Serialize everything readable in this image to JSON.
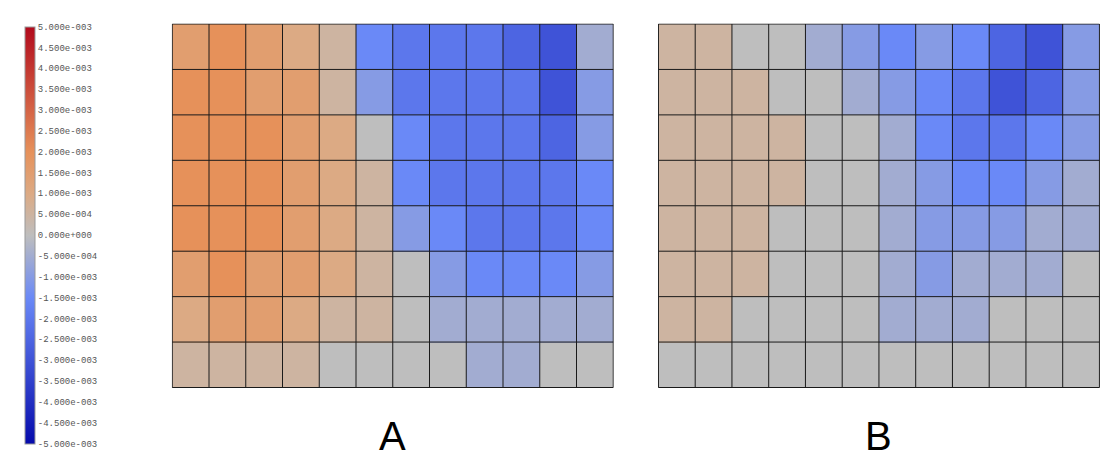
{
  "chart_data": {
    "type": "heatmap",
    "tick_labels": false,
    "colorbar_range": [
      -0.005,
      0.005
    ],
    "colorbar_ticks": [
      {
        "value": 0.005,
        "label": "5.000e-003"
      },
      {
        "value": 0.0045,
        "label": "4.500e-003"
      },
      {
        "value": 0.004,
        "label": "4.000e-003"
      },
      {
        "value": 0.0035,
        "label": "3.500e-003"
      },
      {
        "value": 0.003,
        "label": "3.000e-003"
      },
      {
        "value": 0.0025,
        "label": "2.500e-003"
      },
      {
        "value": 0.002,
        "label": "2.000e-003"
      },
      {
        "value": 0.0015,
        "label": "1.500e-003"
      },
      {
        "value": 0.001,
        "label": "1.000e-003"
      },
      {
        "value": 0.0005,
        "label": "5.000e-004"
      },
      {
        "value": 0,
        "label": "0.000e+000"
      },
      {
        "value": -0.0005,
        "label": "-5.000e-004"
      },
      {
        "value": -0.001,
        "label": "-1.000e-003"
      },
      {
        "value": -0.0015,
        "label": "-1.500e-003"
      },
      {
        "value": -0.002,
        "label": "-2.000e-003"
      },
      {
        "value": -0.0025,
        "label": "-2.500e-003"
      },
      {
        "value": -0.003,
        "label": "-3.000e-003"
      },
      {
        "value": -0.0035,
        "label": "-3.500e-003"
      },
      {
        "value": -0.004,
        "label": "-4.000e-003"
      },
      {
        "value": -0.0045,
        "label": "-4.500e-003"
      },
      {
        "value": -0.005,
        "label": "-5.000e-003"
      }
    ],
    "panels": [
      {
        "label": "A",
        "z": [
          [
            0.0015,
            0.002,
            0.0015,
            0.001,
            0.0005,
            -0.0015,
            -0.002,
            -0.002,
            -0.002,
            -0.0025,
            -0.003,
            -0.0005
          ],
          [
            0.002,
            0.002,
            0.0015,
            0.0015,
            0.0005,
            -0.001,
            -0.002,
            -0.002,
            -0.002,
            -0.002,
            -0.003,
            -0.001
          ],
          [
            0.002,
            0.002,
            0.002,
            0.0015,
            0.001,
            0,
            -0.0015,
            -0.002,
            -0.002,
            -0.002,
            -0.0025,
            -0.001
          ],
          [
            0.002,
            0.002,
            0.002,
            0.0015,
            0.001,
            0.0005,
            -0.0015,
            -0.002,
            -0.002,
            -0.002,
            -0.002,
            -0.0015
          ],
          [
            0.002,
            0.002,
            0.002,
            0.0015,
            0.001,
            0.0005,
            -0.001,
            -0.0015,
            -0.002,
            -0.002,
            -0.002,
            -0.0015
          ],
          [
            0.0015,
            0.002,
            0.0015,
            0.0015,
            0.001,
            0.0005,
            0,
            -0.001,
            -0.0015,
            -0.0015,
            -0.0015,
            -0.001
          ],
          [
            0.001,
            0.0015,
            0.0015,
            0.001,
            0.0005,
            0.0005,
            0,
            -0.0005,
            -0.0005,
            -0.0005,
            -0.0005,
            -0.0005
          ],
          [
            0.0005,
            0.0005,
            0.0005,
            0.0005,
            0,
            0,
            0,
            0,
            -0.0005,
            -0.0005,
            0,
            0
          ]
        ]
      },
      {
        "label": "B",
        "z": [
          [
            0.0005,
            0.0005,
            0,
            0,
            -0.0005,
            -0.001,
            -0.0015,
            -0.001,
            -0.0015,
            -0.0025,
            -0.003,
            -0.001
          ],
          [
            0.0005,
            0.0005,
            0.0005,
            0,
            0,
            -0.0005,
            -0.001,
            -0.0015,
            -0.002,
            -0.003,
            -0.0025,
            -0.001
          ],
          [
            0.0005,
            0.0005,
            0.0005,
            0.0005,
            0,
            0,
            -0.0005,
            -0.0015,
            -0.002,
            -0.002,
            -0.0015,
            -0.001
          ],
          [
            0.0005,
            0.0005,
            0.0005,
            0.0005,
            0,
            0,
            -0.0005,
            -0.001,
            -0.0015,
            -0.0015,
            -0.001,
            -0.0005
          ],
          [
            0.0005,
            0.0005,
            0.0005,
            0,
            0,
            0,
            -0.0005,
            -0.001,
            -0.001,
            -0.001,
            -0.0005,
            -0.0005
          ],
          [
            0.0005,
            0.0005,
            0.0005,
            0,
            0,
            0,
            -0.0005,
            -0.001,
            -0.0005,
            -0.0005,
            -0.0005,
            0
          ],
          [
            0.0005,
            0.0005,
            0,
            0,
            0,
            0,
            -0.0005,
            -0.0005,
            -0.0005,
            0,
            0,
            0
          ],
          [
            0,
            0,
            0,
            0,
            0,
            0,
            0,
            0,
            0,
            0,
            0,
            0
          ]
        ]
      }
    ]
  }
}
